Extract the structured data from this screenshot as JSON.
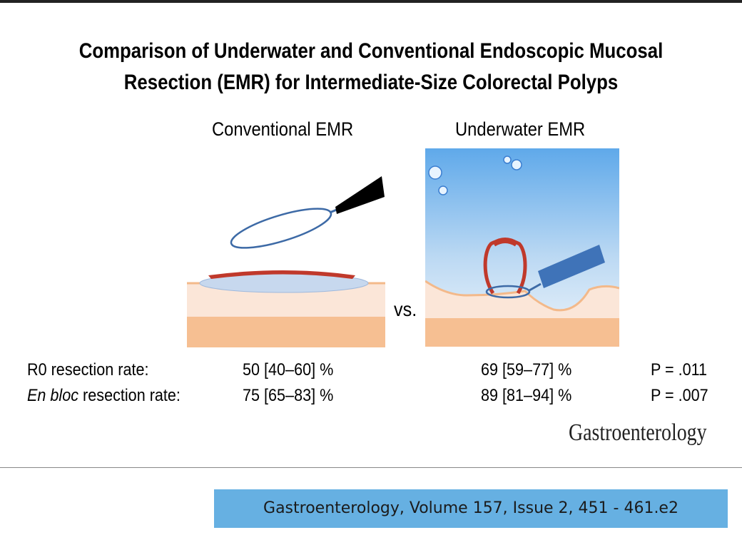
{
  "title_line1": "Comparison of Underwater and Conventional Endoscopic Mucosal",
  "title_line2": "Resection (EMR) for Intermediate-Size Colorectal Polyps",
  "panels": {
    "conventional_label": "Conventional EMR",
    "underwater_label": "Underwater EMR",
    "vs_label": "vs."
  },
  "results": {
    "rows": [
      {
        "label_plain": "R0 resection rate:",
        "conventional": "50 [40–60] %",
        "underwater": "69 [59–77] %",
        "p_value": "P = .011"
      },
      {
        "label_italic": "En bloc",
        "label_rest": " resection rate:",
        "conventional": "75 [65–83] %",
        "underwater": "89 [81–94] %",
        "p_value": "P = .007"
      }
    ]
  },
  "journal_logo": "Gastroenterology",
  "citation": "Gastroenterology, Volume 157, Issue 2, 451 - 461.e2",
  "colors": {
    "tissue_light": "#fbe6d8",
    "tissue_dark": "#f6bf92",
    "polyp_red": "#c0392b",
    "saline_blue": "#c7d8ee",
    "snare_blue": "#3d6aa6",
    "water_top": "#5fa9ea",
    "citation_bg": "#66b0e2"
  },
  "icons": [
    "snare-catheter-icon",
    "polyp-icon",
    "water-bubble-icon"
  ]
}
